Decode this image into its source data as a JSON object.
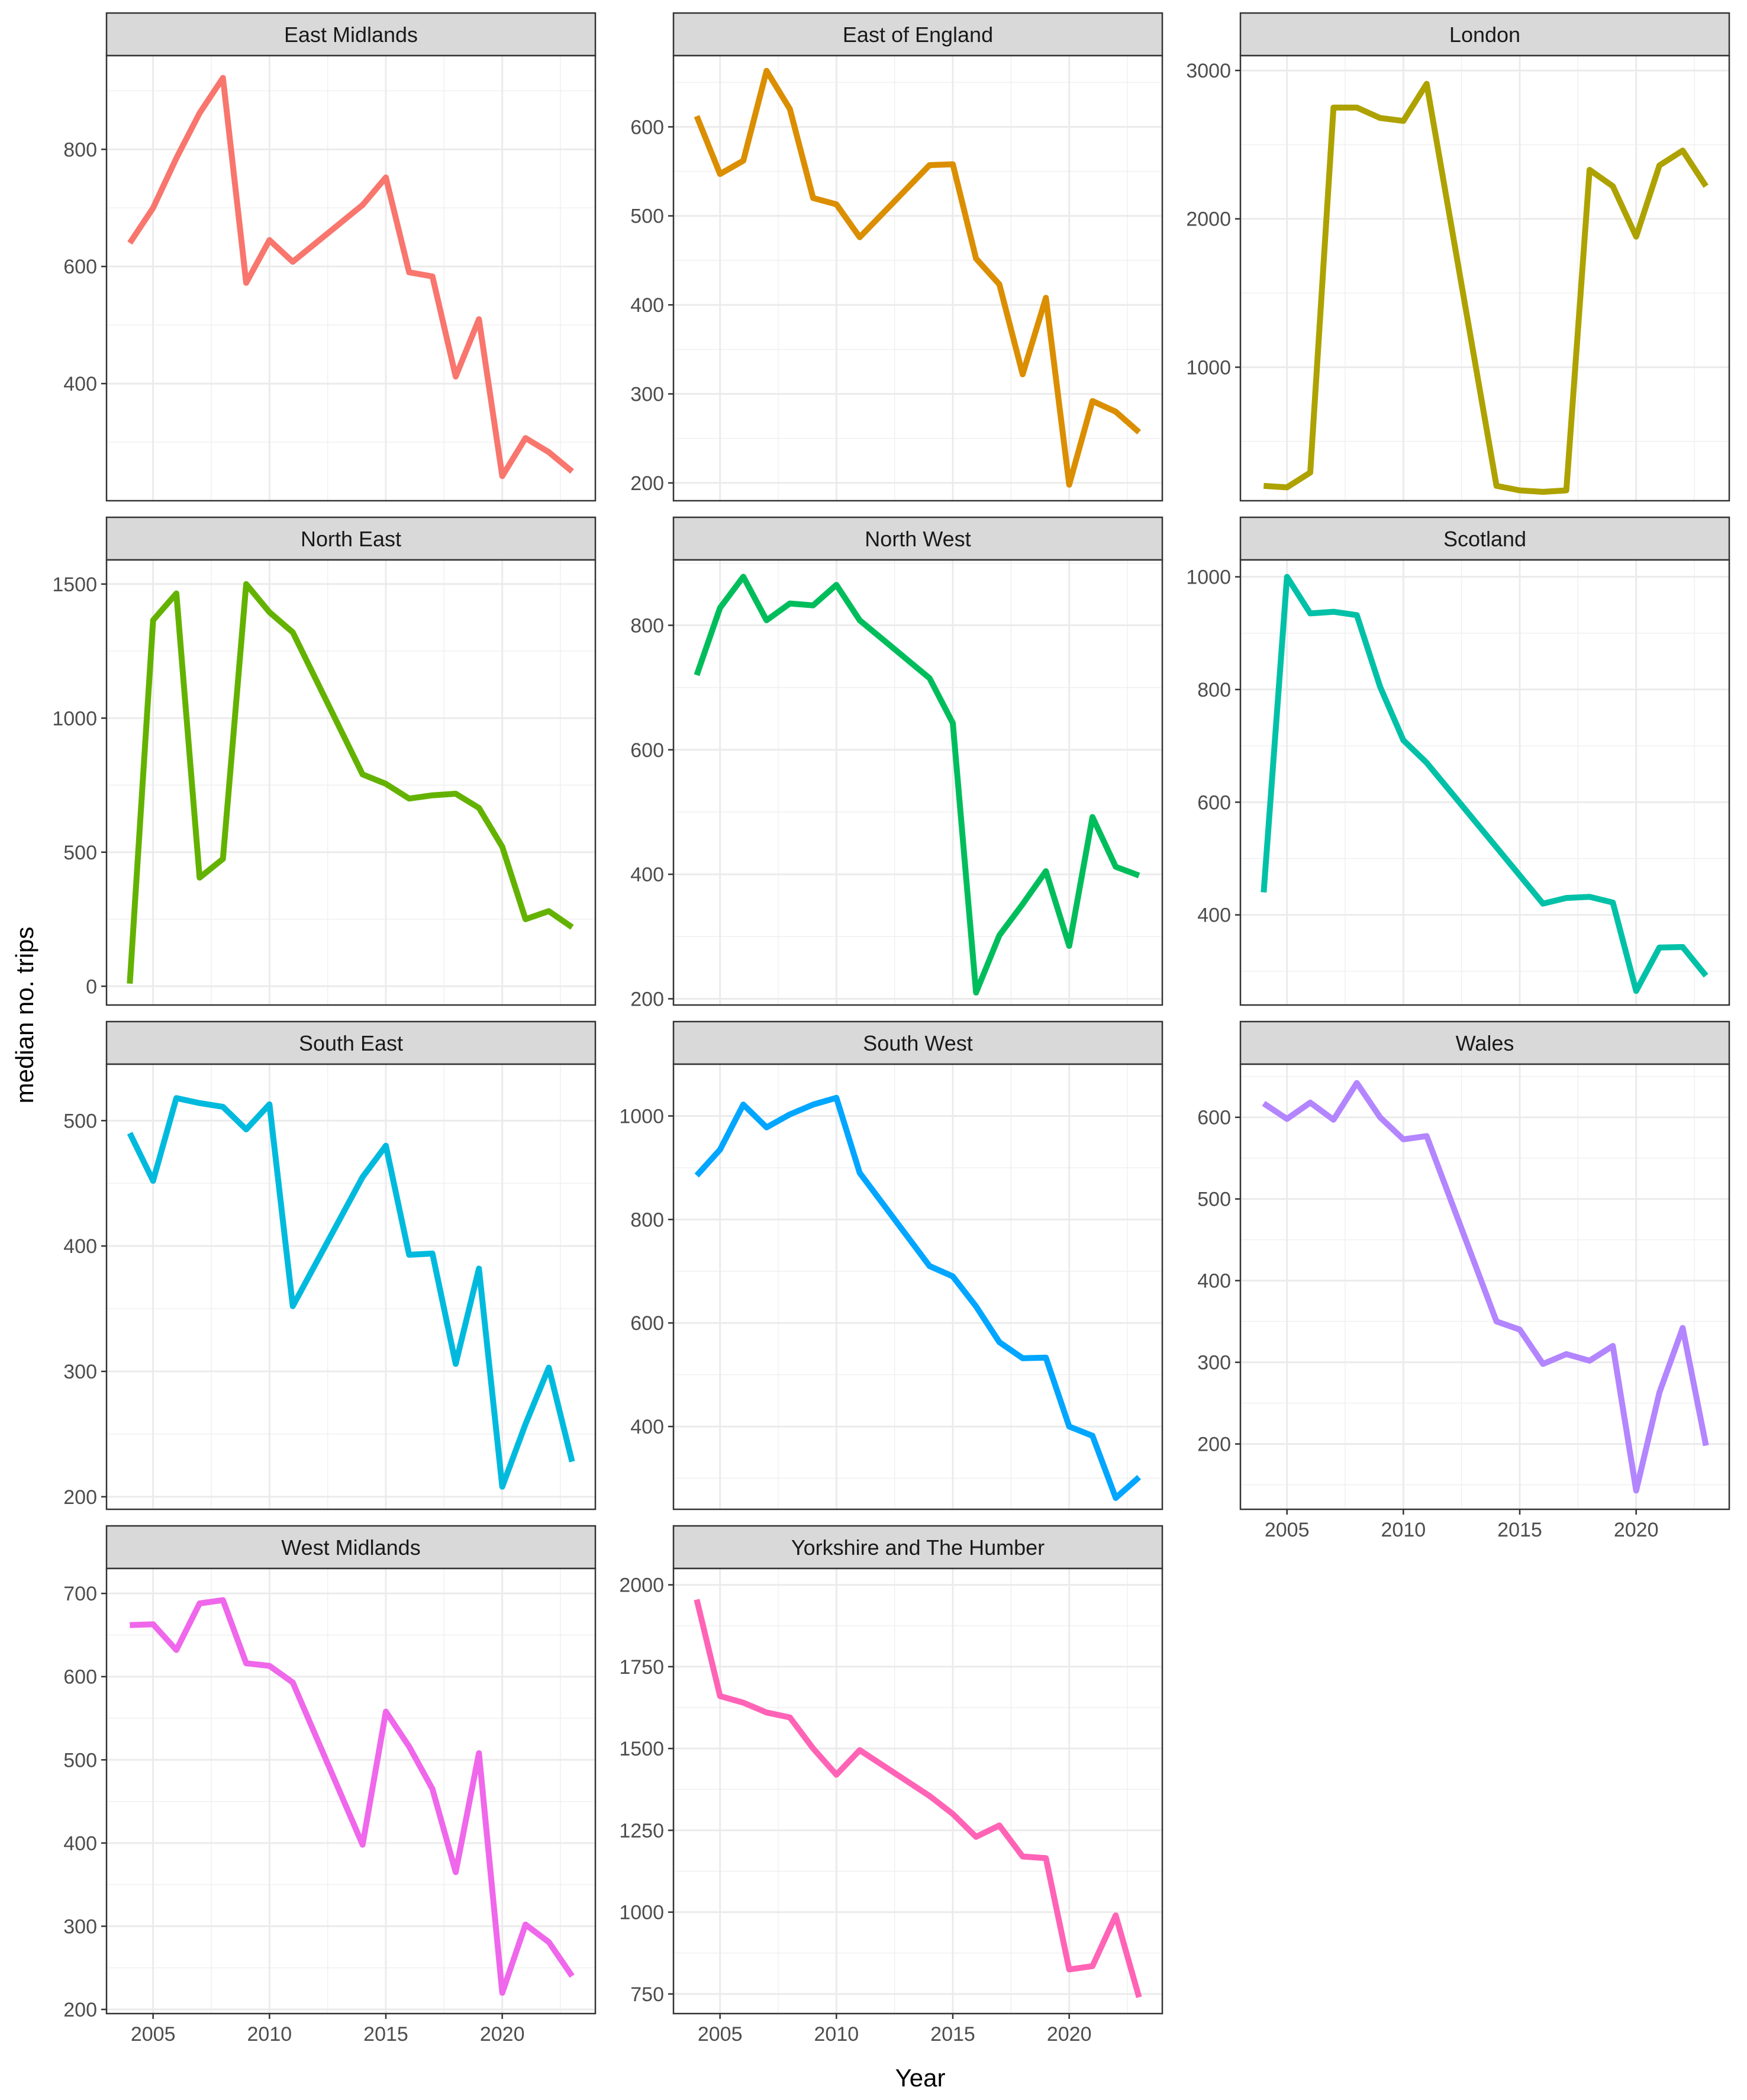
{
  "chart_data": {
    "type": "line",
    "layout": "facet-wrap",
    "xlabel": "Year",
    "ylabel": "median no. trips",
    "x_ticks": [
      2005,
      2010,
      2015,
      2020
    ],
    "xlim": [
      2003,
      2024
    ],
    "grid": true,
    "theme": "bw",
    "facets": [
      {
        "name": "East Midlands",
        "color": "#F8766D",
        "ylim": [
          200,
          960
        ],
        "yticks": [
          400,
          600,
          800
        ],
        "x": [
          2004,
          2005,
          2006,
          2007,
          2008,
          2009,
          2010,
          2011,
          2014,
          2015,
          2016,
          2017,
          2018,
          2019,
          2020,
          2021,
          2022,
          2023
        ],
        "y": [
          640,
          700,
          785,
          862,
          922,
          572,
          645,
          608,
          705,
          752,
          590,
          583,
          412,
          510,
          242,
          307,
          283,
          250
        ]
      },
      {
        "name": "East of England",
        "color": "#DB8E00",
        "ylim": [
          180,
          680
        ],
        "yticks": [
          200,
          300,
          400,
          500,
          600
        ],
        "x": [
          2004,
          2005,
          2006,
          2007,
          2008,
          2009,
          2010,
          2011,
          2014,
          2015,
          2016,
          2017,
          2018,
          2019,
          2020,
          2021,
          2022,
          2023
        ],
        "y": [
          612,
          547,
          562,
          663,
          620,
          520,
          513,
          476,
          557,
          558,
          452,
          423,
          322,
          408,
          198,
          292,
          280,
          257
        ]
      },
      {
        "name": "London",
        "color": "#AEA200",
        "ylim": [
          100,
          3100
        ],
        "yticks": [
          1000,
          2000,
          3000
        ],
        "x": [
          2004,
          2005,
          2006,
          2007,
          2008,
          2009,
          2010,
          2011,
          2014,
          2015,
          2016,
          2017,
          2018,
          2019,
          2020,
          2021,
          2022,
          2023
        ],
        "y": [
          200,
          190,
          290,
          2750,
          2750,
          2680,
          2660,
          2910,
          200,
          170,
          160,
          170,
          2330,
          2220,
          1880,
          2360,
          2460,
          2220
        ]
      },
      {
        "name": "North East",
        "color": "#64B200",
        "ylim": [
          -70,
          1590
        ],
        "yticks": [
          0,
          500,
          1000,
          1500
        ],
        "x": [
          2004,
          2005,
          2006,
          2007,
          2008,
          2009,
          2010,
          2011,
          2014,
          2015,
          2016,
          2017,
          2018,
          2019,
          2020,
          2021,
          2022,
          2023
        ],
        "y": [
          10,
          1365,
          1465,
          405,
          475,
          1500,
          1395,
          1320,
          790,
          755,
          700,
          712,
          718,
          665,
          520,
          250,
          280,
          220
        ]
      },
      {
        "name": "North West",
        "color": "#00BD5C",
        "ylim": [
          190,
          905
        ],
        "yticks": [
          200,
          400,
          600,
          800
        ],
        "x": [
          2004,
          2005,
          2006,
          2007,
          2008,
          2009,
          2010,
          2011,
          2014,
          2015,
          2016,
          2017,
          2018,
          2019,
          2020,
          2021,
          2022,
          2023
        ],
        "y": [
          720,
          828,
          878,
          808,
          835,
          832,
          865,
          808,
          715,
          643,
          210,
          302,
          352,
          405,
          285,
          492,
          412,
          398
        ]
      },
      {
        "name": "Scotland",
        "color": "#00C1A7",
        "ylim": [
          240,
          1030
        ],
        "yticks": [
          400,
          600,
          800,
          1000
        ],
        "x": [
          2004,
          2005,
          2006,
          2007,
          2008,
          2009,
          2010,
          2011,
          2014,
          2015,
          2016,
          2017,
          2018,
          2019,
          2020,
          2021,
          2022,
          2023
        ],
        "y": [
          440,
          1000,
          935,
          938,
          932,
          805,
          710,
          670,
          520,
          470,
          420,
          430,
          432,
          422,
          265,
          342,
          343,
          292
        ]
      },
      {
        "name": "South East",
        "color": "#00BADE",
        "ylim": [
          190,
          545
        ],
        "yticks": [
          200,
          300,
          400,
          500
        ],
        "x": [
          2004,
          2005,
          2006,
          2007,
          2008,
          2009,
          2010,
          2011,
          2014,
          2015,
          2016,
          2017,
          2018,
          2019,
          2020,
          2021,
          2022,
          2023
        ],
        "y": [
          490,
          452,
          518,
          514,
          511,
          493,
          513,
          352,
          455,
          480,
          393,
          394,
          306,
          382,
          208,
          258,
          303,
          228
        ]
      },
      {
        "name": "South West",
        "color": "#00A6FF",
        "ylim": [
          240,
          1100
        ],
        "yticks": [
          400,
          600,
          800,
          1000
        ],
        "x": [
          2004,
          2005,
          2006,
          2007,
          2008,
          2009,
          2010,
          2011,
          2014,
          2015,
          2016,
          2017,
          2018,
          2019,
          2020,
          2021,
          2022,
          2023
        ],
        "y": [
          885,
          935,
          1022,
          978,
          1003,
          1022,
          1035,
          890,
          710,
          690,
          632,
          563,
          532,
          533,
          400,
          382,
          262,
          302
        ]
      },
      {
        "name": "Wales",
        "color": "#B385FF",
        "ylim": [
          120,
          665
        ],
        "yticks": [
          200,
          300,
          400,
          500,
          600
        ],
        "x": [
          2004,
          2005,
          2006,
          2007,
          2008,
          2009,
          2010,
          2011,
          2014,
          2015,
          2016,
          2017,
          2018,
          2019,
          2020,
          2021,
          2022,
          2023
        ],
        "y": [
          617,
          598,
          618,
          597,
          642,
          600,
          573,
          577,
          350,
          340,
          298,
          310,
          302,
          320,
          143,
          263,
          342,
          198
        ]
      },
      {
        "name": "West Midlands",
        "color": "#EF67EB",
        "ylim": [
          195,
          730
        ],
        "yticks": [
          200,
          300,
          400,
          500,
          600,
          700
        ],
        "x": [
          2004,
          2005,
          2006,
          2007,
          2008,
          2009,
          2010,
          2011,
          2014,
          2015,
          2016,
          2017,
          2018,
          2019,
          2020,
          2021,
          2022,
          2023
        ],
        "y": [
          662,
          663,
          632,
          688,
          692,
          616,
          613,
          593,
          398,
          558,
          516,
          465,
          365,
          508,
          220,
          302,
          281,
          240
        ]
      },
      {
        "name": "Yorkshire and The Humber",
        "color": "#FF63B6",
        "ylim": [
          690,
          2050
        ],
        "yticks": [
          750,
          1000,
          1250,
          1500,
          1750,
          2000
        ],
        "x": [
          2004,
          2005,
          2006,
          2007,
          2008,
          2009,
          2010,
          2011,
          2014,
          2015,
          2016,
          2017,
          2018,
          2019,
          2020,
          2021,
          2022,
          2023
        ],
        "y": [
          1955,
          1660,
          1640,
          1610,
          1595,
          1500,
          1420,
          1495,
          1355,
          1300,
          1230,
          1265,
          1170,
          1165,
          825,
          835,
          990,
          740
        ]
      }
    ]
  }
}
